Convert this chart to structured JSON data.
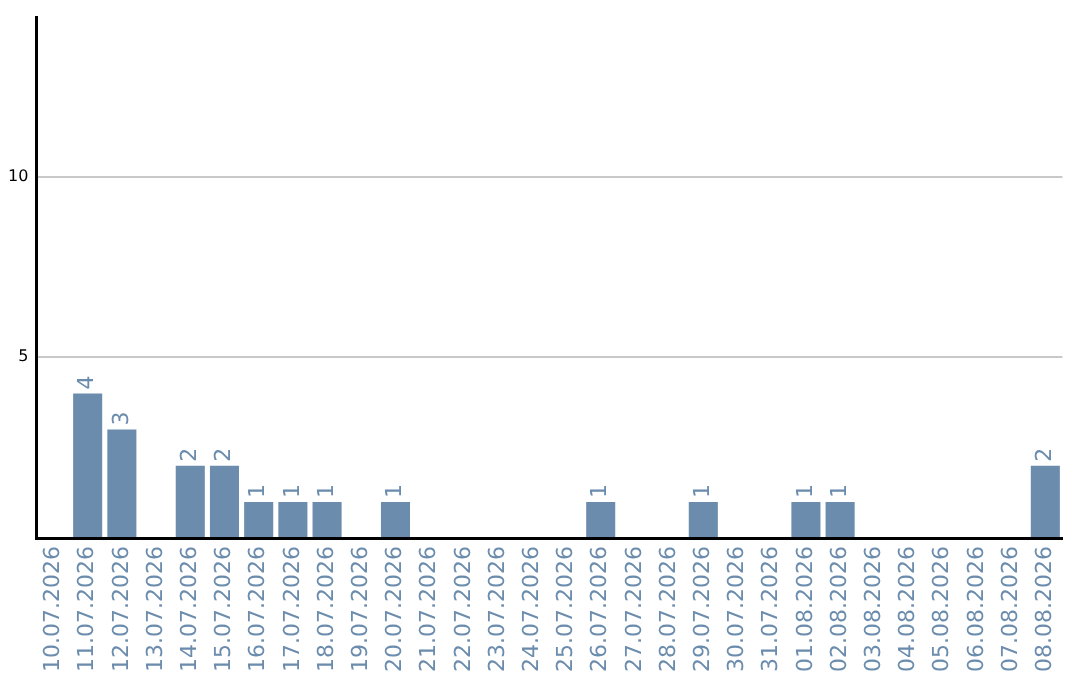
{
  "chart_data": {
    "type": "bar",
    "categories": [
      "10.07.2026",
      "11.07.2026",
      "12.07.2026",
      "13.07.2026",
      "14.07.2026",
      "15.07.2026",
      "16.07.2026",
      "17.07.2026",
      "18.07.2026",
      "19.07.2026",
      "20.07.2026",
      "21.07.2026",
      "22.07.2026",
      "23.07.2026",
      "24.07.2026",
      "25.07.2026",
      "26.07.2026",
      "27.07.2026",
      "28.07.2026",
      "29.07.2026",
      "30.07.2026",
      "31.07.2026",
      "01.08.2026",
      "02.08.2026",
      "03.08.2026",
      "04.08.2026",
      "05.08.2026",
      "06.08.2026",
      "07.08.2026",
      "08.08.2026"
    ],
    "values": [
      0,
      4,
      3,
      0,
      2,
      2,
      1,
      1,
      1,
      0,
      1,
      0,
      0,
      0,
      0,
      0,
      1,
      0,
      0,
      1,
      0,
      0,
      1,
      1,
      0,
      0,
      0,
      0,
      0,
      2
    ],
    "value_labels": [
      null,
      "4",
      "3",
      null,
      "2",
      "2",
      "1",
      "1",
      "1",
      null,
      "1",
      null,
      null,
      null,
      null,
      null,
      "1",
      null,
      null,
      "1",
      null,
      null,
      "1",
      "1",
      null,
      null,
      null,
      null,
      null,
      "2"
    ],
    "color": "#6b8cad",
    "ylim": [
      0,
      14.4
    ],
    "yticks": [
      {
        "value": 0,
        "label": null
      },
      5,
      10
    ],
    "grid": "y",
    "legend": false
  }
}
